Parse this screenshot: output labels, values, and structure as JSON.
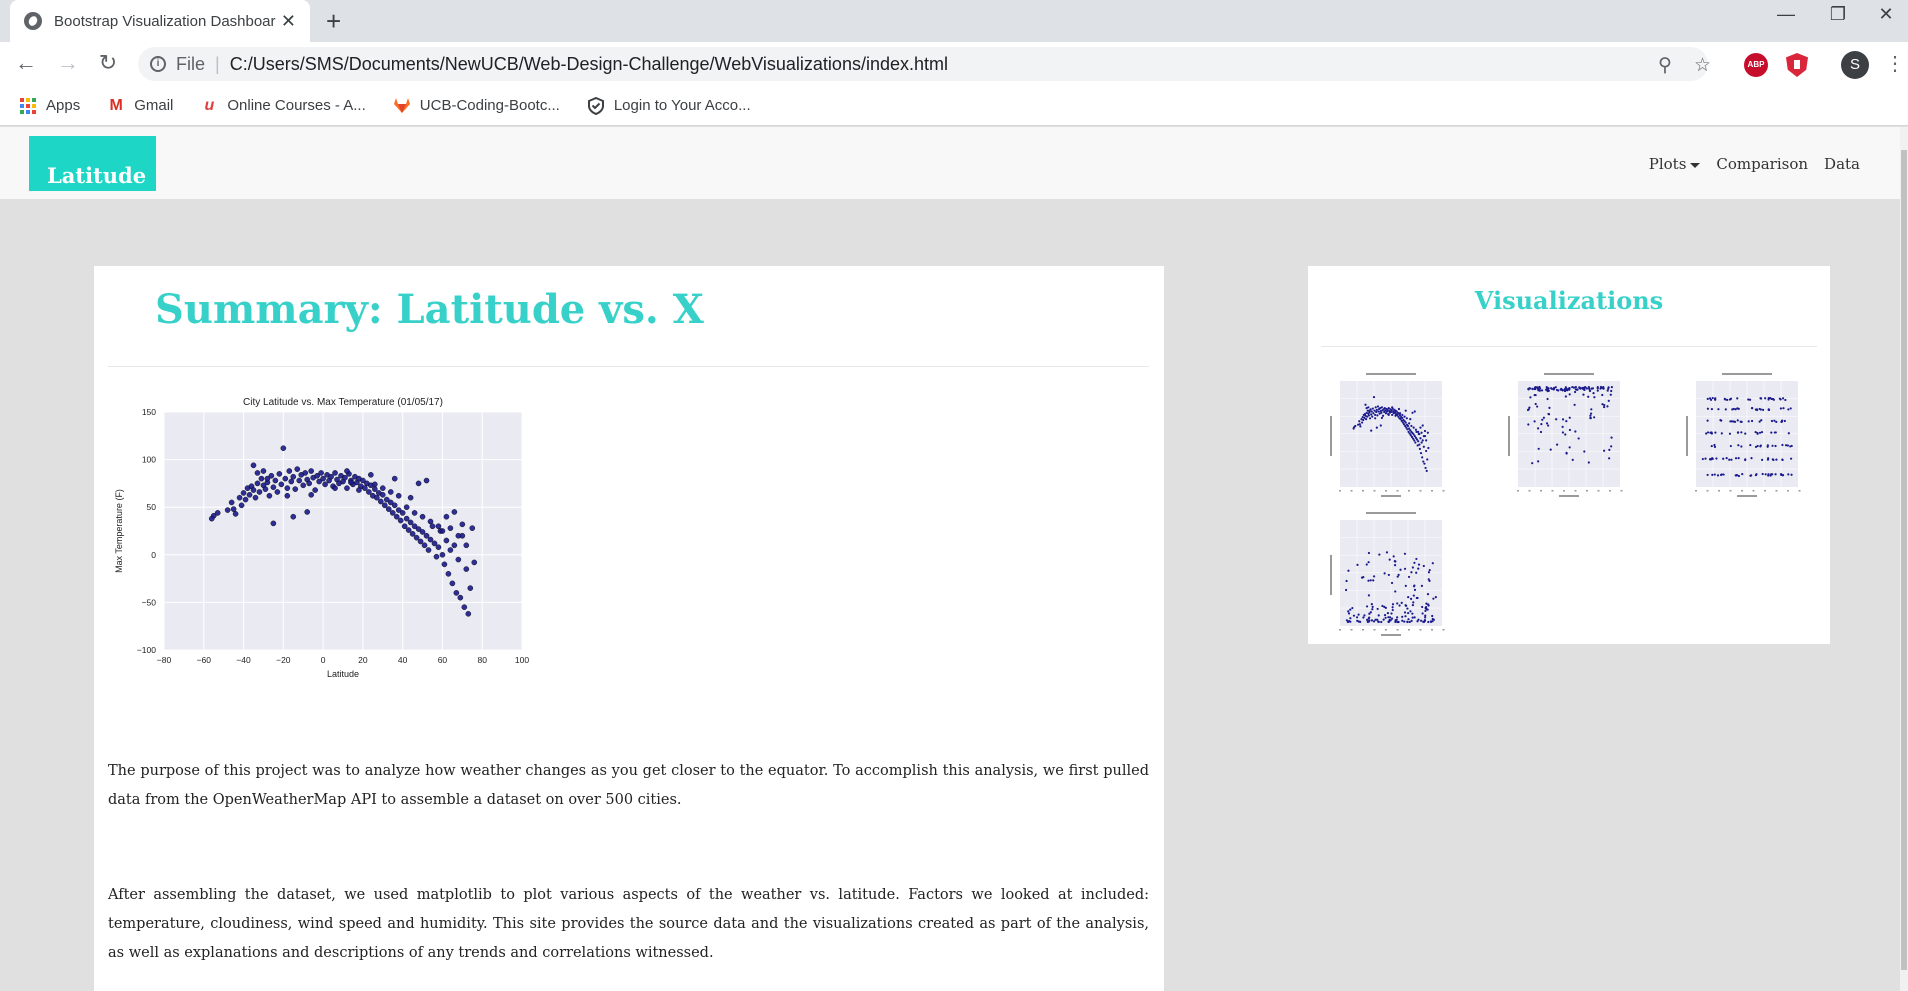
{
  "browser": {
    "tab_title": "Bootstrap Visualization Dashboard",
    "tab_close_glyph": "✕",
    "newtab_glyph": "+",
    "file_label": "File",
    "url": "C:/Users/SMS/Documents/NewUCB/Web-Design-Challenge/WebVisualizations/index.html",
    "profile_initial": "S",
    "abp_label": "ABP",
    "bookmarks": [
      {
        "label": "Apps",
        "icon": "apps-grid-icon"
      },
      {
        "label": "Gmail",
        "icon": "gmail-icon"
      },
      {
        "label": "Online Courses - A...",
        "icon": "udemy-icon"
      },
      {
        "label": "UCB-Coding-Bootc...",
        "icon": "gitlab-icon"
      },
      {
        "label": "Login to Your Acco...",
        "icon": "shield-check-icon"
      }
    ],
    "apps_colors": [
      "#ea4335",
      "#fbbc04",
      "#34a853",
      "#4285f4"
    ]
  },
  "navbar": {
    "brand": "Latitude",
    "links": [
      "Plots",
      "Comparison",
      "Data"
    ]
  },
  "summary": {
    "title": "Summary: Latitude vs. X",
    "paragraph1": "The purpose of this project was to analyze how weather changes as you get closer to the equator. To accomplish this analysis, we first pulled data from the OpenWeatherMap API to assemble a dataset on over 500 cities.",
    "paragraph2": "After assembling the dataset, we used matplotlib to plot various aspects of the weather vs. latitude. Factors we looked at included: temperature, cloudiness, wind speed and humidity. This site provides the source data and the visualizations created as part of the analysis, as well as explanations and descriptions of any trends and correlations witnessed."
  },
  "visualizations": {
    "title": "Visualizations"
  },
  "colors": {
    "accent": "#1ed6c6",
    "heading": "#37d1c9",
    "point": "#1a1a8c",
    "plot_bg": "#eaeaf2"
  },
  "chart_data": {
    "type": "scatter",
    "title": "City Latitude vs. Max Temperature (01/05/17)",
    "xlabel": "Latitude",
    "ylabel": "Max Temperature (F)",
    "xlim": [
      -80,
      100
    ],
    "ylim": [
      -100,
      150
    ],
    "xticks": [
      -80,
      -60,
      -40,
      -20,
      0,
      20,
      40,
      60,
      80,
      100
    ],
    "yticks": [
      -100,
      -50,
      0,
      50,
      100,
      150
    ],
    "xtick_labels": [
      "−80",
      "−60",
      "−40",
      "−20",
      "0",
      "20",
      "40",
      "60",
      "80",
      "100"
    ],
    "ytick_labels": [
      "−100",
      "−50",
      "0",
      "50",
      "100",
      "150"
    ],
    "grid": true,
    "series": [
      {
        "points": [
          [
            -55,
            41
          ],
          [
            -53,
            44
          ],
          [
            -56,
            38
          ],
          [
            -48,
            47
          ],
          [
            -46,
            55
          ],
          [
            -45,
            48
          ],
          [
            -44,
            43
          ],
          [
            -42,
            60
          ],
          [
            -41,
            52
          ],
          [
            -40,
            65
          ],
          [
            -39,
            58
          ],
          [
            -38,
            70
          ],
          [
            -37,
            63
          ],
          [
            -36,
            72
          ],
          [
            -35,
            68
          ],
          [
            -34,
            60
          ],
          [
            -33,
            75
          ],
          [
            -32,
            66
          ],
          [
            -31,
            80
          ],
          [
            -30,
            73
          ],
          [
            -29,
            69
          ],
          [
            -28,
            76
          ],
          [
            -27,
            62
          ],
          [
            -26,
            83
          ],
          [
            -25,
            71
          ],
          [
            -24,
            78
          ],
          [
            -23,
            66
          ],
          [
            -22,
            85
          ],
          [
            -21,
            74
          ],
          [
            -20,
            112
          ],
          [
            -19,
            80
          ],
          [
            -18,
            70
          ],
          [
            -17,
            88
          ],
          [
            -16,
            77
          ],
          [
            -15,
            82
          ],
          [
            -14,
            69
          ],
          [
            -13,
            90
          ],
          [
            -12,
            78
          ],
          [
            -11,
            84
          ],
          [
            -10,
            73
          ],
          [
            -9,
            86
          ],
          [
            -8,
            79
          ],
          [
            -7,
            75
          ],
          [
            -6,
            88
          ],
          [
            -5,
            81
          ],
          [
            -4,
            68
          ],
          [
            -3,
            83
          ],
          [
            -2,
            77
          ],
          [
            -1,
            86
          ],
          [
            0,
            80
          ],
          [
            1,
            74
          ],
          [
            2,
            84
          ],
          [
            3,
            78
          ],
          [
            4,
            82
          ],
          [
            5,
            72
          ],
          [
            6,
            86
          ],
          [
            7,
            79
          ],
          [
            8,
            75
          ],
          [
            9,
            83
          ],
          [
            10,
            77
          ],
          [
            11,
            81
          ],
          [
            12,
            70
          ],
          [
            13,
            85
          ],
          [
            14,
            78
          ],
          [
            15,
            74
          ],
          [
            16,
            82
          ],
          [
            17,
            76
          ],
          [
            18,
            80
          ],
          [
            19,
            72
          ],
          [
            20,
            78
          ],
          [
            21,
            70
          ],
          [
            22,
            75
          ],
          [
            23,
            66
          ],
          [
            24,
            73
          ],
          [
            25,
            62
          ],
          [
            26,
            69
          ],
          [
            27,
            60
          ],
          [
            28,
            65
          ],
          [
            29,
            56
          ],
          [
            30,
            63
          ],
          [
            31,
            52
          ],
          [
            32,
            58
          ],
          [
            33,
            48
          ],
          [
            34,
            55
          ],
          [
            35,
            44
          ],
          [
            36,
            52
          ],
          [
            37,
            40
          ],
          [
            38,
            47
          ],
          [
            39,
            36
          ],
          [
            40,
            44
          ],
          [
            41,
            30
          ],
          [
            42,
            38
          ],
          [
            43,
            26
          ],
          [
            44,
            34
          ],
          [
            45,
            22
          ],
          [
            46,
            30
          ],
          [
            47,
            18
          ],
          [
            48,
            27
          ],
          [
            49,
            14
          ],
          [
            50,
            24
          ],
          [
            51,
            10
          ],
          [
            52,
            20
          ],
          [
            53,
            5
          ],
          [
            54,
            16
          ],
          [
            55,
            30
          ],
          [
            56,
            12
          ],
          [
            57,
            -2
          ],
          [
            58,
            8
          ],
          [
            59,
            25
          ],
          [
            60,
            0
          ],
          [
            61,
            -10
          ],
          [
            62,
            15
          ],
          [
            63,
            -20
          ],
          [
            64,
            5
          ],
          [
            65,
            -30
          ],
          [
            66,
            10
          ],
          [
            67,
            -40
          ],
          [
            68,
            -5
          ],
          [
            69,
            -45
          ],
          [
            70,
            20
          ],
          [
            71,
            -55
          ],
          [
            72,
            -15
          ],
          [
            73,
            -62
          ],
          [
            74,
            -35
          ],
          [
            75,
            28
          ],
          [
            -35,
            94
          ],
          [
            -30,
            88
          ],
          [
            -25,
            33
          ],
          [
            -15,
            40
          ],
          [
            -8,
            45
          ],
          [
            12,
            88
          ],
          [
            24,
            84
          ],
          [
            36,
            80
          ],
          [
            48,
            75
          ],
          [
            52,
            78
          ],
          [
            58,
            30
          ],
          [
            62,
            40
          ],
          [
            66,
            45
          ],
          [
            70,
            32
          ],
          [
            44,
            60
          ],
          [
            38,
            62
          ],
          [
            30,
            70
          ],
          [
            18,
            68
          ],
          [
            6,
            70
          ],
          [
            -6,
            63
          ],
          [
            -18,
            62
          ],
          [
            -28,
            80
          ],
          [
            -33,
            86
          ],
          [
            50,
            40
          ],
          [
            54,
            35
          ],
          [
            60,
            25
          ],
          [
            64,
            28
          ],
          [
            68,
            20
          ],
          [
            72,
            10
          ],
          [
            76,
            -8
          ],
          [
            46,
            44
          ],
          [
            42,
            50
          ],
          [
            34,
            66
          ],
          [
            26,
            74
          ],
          [
            14,
            76
          ]
        ]
      }
    ]
  }
}
